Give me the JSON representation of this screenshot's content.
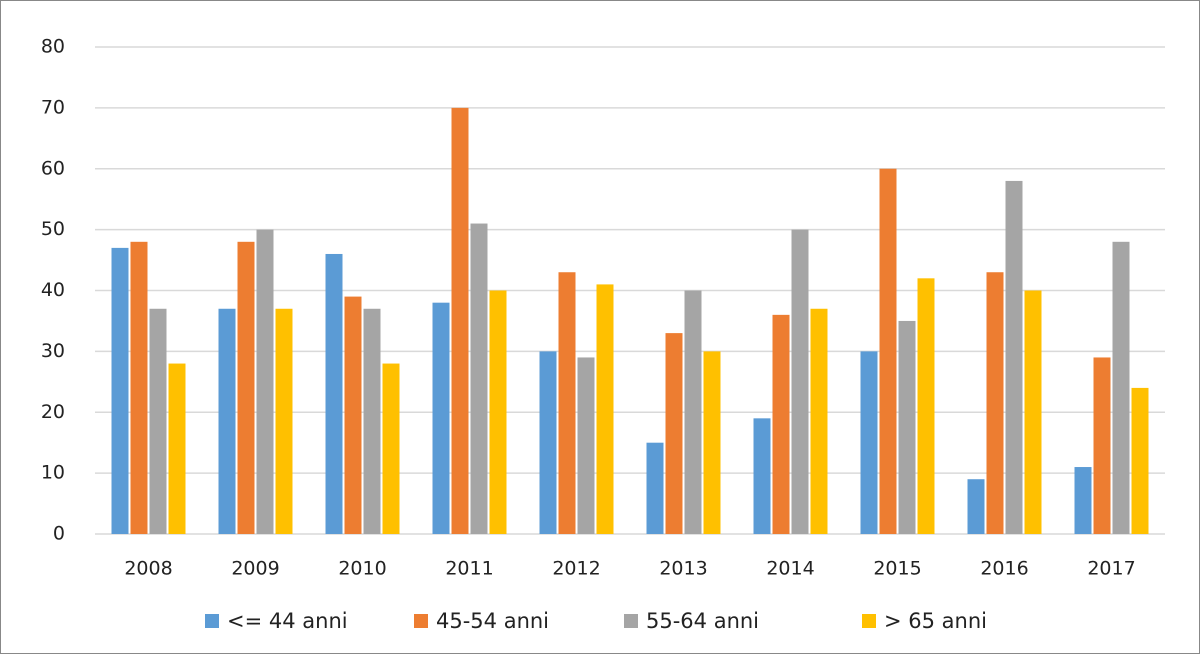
{
  "chart_data": {
    "type": "bar",
    "categories": [
      "2008",
      "2009",
      "2010",
      "2011",
      "2012",
      "2013",
      "2014",
      "2015",
      "2016",
      "2017"
    ],
    "series": [
      {
        "name": "<= 44 anni",
        "color": "#5b9bd5",
        "values": [
          47,
          37,
          46,
          38,
          30,
          15,
          19,
          30,
          9,
          11
        ]
      },
      {
        "name": "45-54 anni",
        "color": "#ed7d31",
        "values": [
          48,
          48,
          39,
          70,
          43,
          33,
          36,
          60,
          43,
          29
        ]
      },
      {
        "name": "55-64 anni",
        "color": "#a5a5a5",
        "values": [
          37,
          50,
          37,
          51,
          29,
          40,
          50,
          35,
          58,
          48
        ]
      },
      {
        "name": "> 65 anni",
        "color": "#ffc000",
        "values": [
          28,
          37,
          28,
          40,
          41,
          30,
          37,
          42,
          40,
          24
        ]
      }
    ],
    "ylim": [
      0,
      80
    ],
    "yticks": [
      0,
      10,
      20,
      30,
      40,
      50,
      60,
      70,
      80
    ],
    "grid": true,
    "legend": "bottom"
  }
}
